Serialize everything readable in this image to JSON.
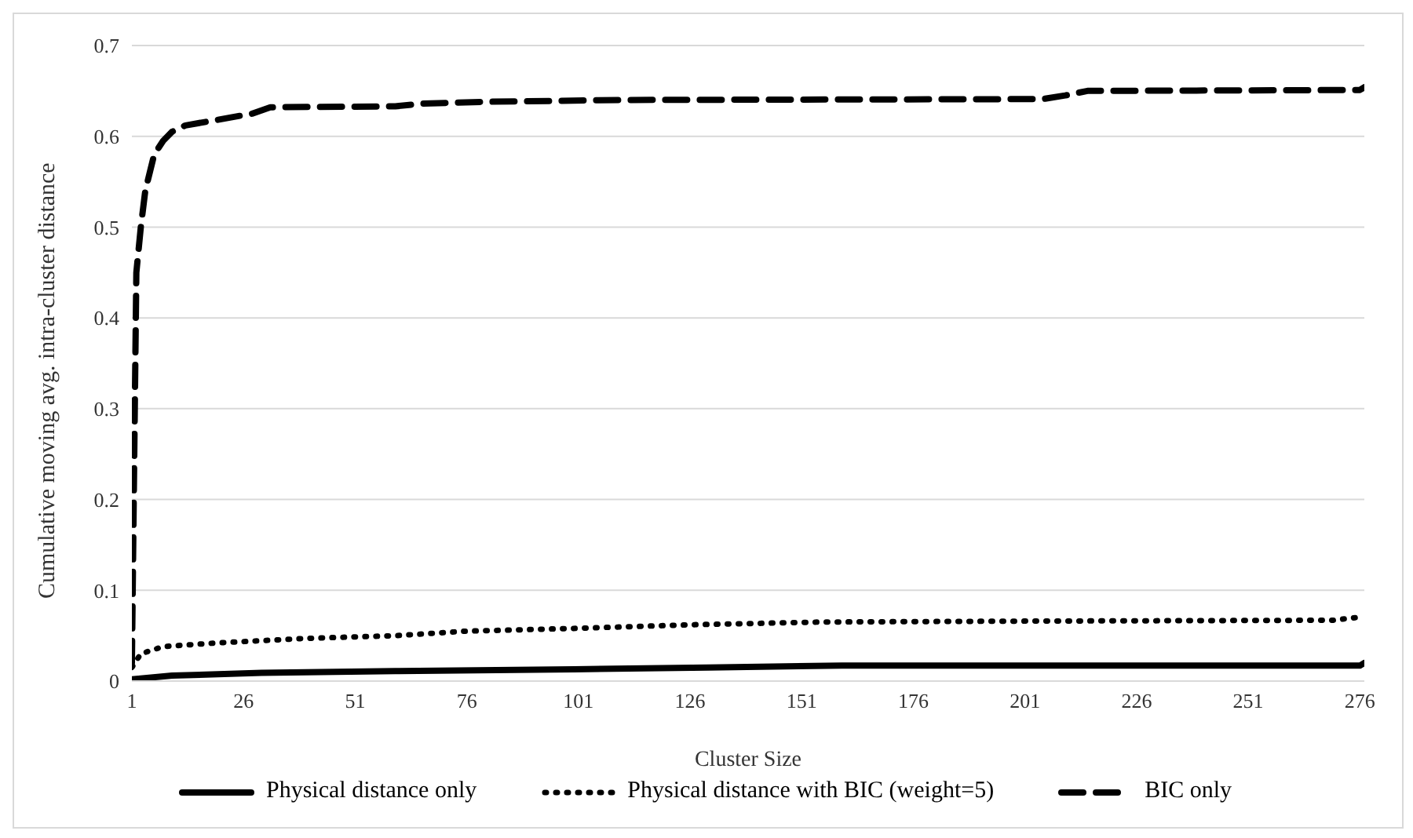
{
  "chart_data": {
    "type": "line",
    "xlabel": "Cluster Size",
    "ylabel": "Cumulative moving avg. intra-cluster distance",
    "xlim": [
      1,
      277
    ],
    "xticks": [
      1,
      26,
      51,
      76,
      101,
      126,
      151,
      176,
      201,
      226,
      251,
      276
    ],
    "ylim": [
      0,
      0.7
    ],
    "yticks": [
      0,
      0.1,
      0.2,
      0.3,
      0.4,
      0.5,
      0.6,
      0.7
    ],
    "grid": "y",
    "legend": "bottom",
    "marker": "none",
    "series": [
      {
        "name": "Physical distance only",
        "color": "#000000",
        "line_style": "solid",
        "x": [
          1,
          10,
          30,
          60,
          100,
          130,
          160,
          276,
          277
        ],
        "values": [
          0.002,
          0.006,
          0.009,
          0.011,
          0.013,
          0.015,
          0.017,
          0.017,
          0.02
        ]
      },
      {
        "name": "Physical distance with BIC (weight=5)",
        "color": "#000000",
        "line_style": "dotted",
        "x": [
          1,
          3,
          8,
          20,
          40,
          60,
          76,
          100,
          126,
          155,
          200,
          270,
          277
        ],
        "values": [
          0.015,
          0.03,
          0.038,
          0.042,
          0.047,
          0.05,
          0.055,
          0.058,
          0.062,
          0.065,
          0.066,
          0.067,
          0.071
        ]
      },
      {
        "name": "BIC only",
        "color": "#000000",
        "line_style": "dashed",
        "x": [
          1,
          2,
          3,
          4,
          5,
          6,
          8,
          10,
          13,
          20,
          28,
          32,
          60,
          66,
          80,
          110,
          205,
          210,
          215,
          276,
          277
        ],
        "values": [
          0.02,
          0.45,
          0.5,
          0.54,
          0.56,
          0.58,
          0.595,
          0.605,
          0.612,
          0.618,
          0.625,
          0.632,
          0.633,
          0.636,
          0.638,
          0.64,
          0.641,
          0.645,
          0.65,
          0.651,
          0.654
        ]
      }
    ]
  }
}
